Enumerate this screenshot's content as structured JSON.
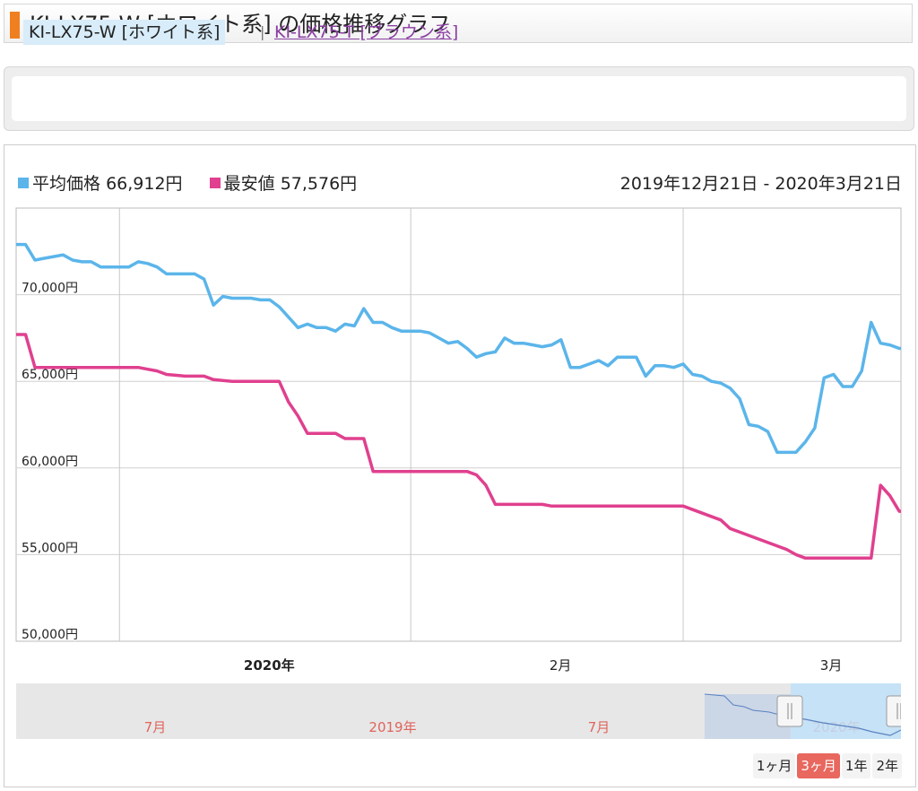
{
  "page": {
    "title": "KI-LX75-W [ホワイト系] の価格推移グラフ"
  },
  "variants": {
    "current": "KI-LX75-W [ホワイト系]",
    "separator": "|",
    "other": "KI-LX75-T [ブラウン系]"
  },
  "legend": {
    "avg_label": "平均価格",
    "avg_value": "66,912円",
    "min_label": "最安値",
    "min_value": "57,576円",
    "date_range": "2019年12月21日 - 2020年3月21日"
  },
  "range_buttons": [
    {
      "label": "1ヶ月",
      "active": false
    },
    {
      "label": "3ヶ月",
      "active": true
    },
    {
      "label": "1年",
      "active": false
    },
    {
      "label": "2年",
      "active": false
    }
  ],
  "navigator": {
    "labels": [
      "7月",
      "2019年",
      "7月",
      "2020年"
    ]
  },
  "chart_data": {
    "type": "line",
    "title": "",
    "x_range": [
      "2019-12-21",
      "2020-03-21"
    ],
    "ylim": [
      50000,
      75000
    ],
    "y_ticks": [
      50000,
      55000,
      60000,
      65000,
      70000
    ],
    "y_tick_labels": [
      "50,000円",
      "55,000円",
      "60,000円",
      "65,000円",
      "70,000円"
    ],
    "x_ticks": [
      {
        "date": "2020-01-01",
        "label": "2020年",
        "bold": true
      },
      {
        "date": "2020-02-01",
        "label": "2月",
        "bold": false
      },
      {
        "date": "2020-03-01",
        "label": "3月",
        "bold": false
      }
    ],
    "grid": true,
    "legend_position": "top-left",
    "series": [
      {
        "name": "平均価格",
        "color": "#5bb5ea",
        "points": [
          [
            "2019-12-21",
            72900
          ],
          [
            "2019-12-22",
            72900
          ],
          [
            "2019-12-23",
            72000
          ],
          [
            "2019-12-24",
            72100
          ],
          [
            "2019-12-25",
            72200
          ],
          [
            "2019-12-26",
            72300
          ],
          [
            "2019-12-27",
            72000
          ],
          [
            "2019-12-28",
            71900
          ],
          [
            "2019-12-29",
            71900
          ],
          [
            "2019-12-30",
            71600
          ],
          [
            "2019-12-31",
            71600
          ],
          [
            "2020-01-01",
            71600
          ],
          [
            "2020-01-02",
            71600
          ],
          [
            "2020-01-03",
            71900
          ],
          [
            "2020-01-04",
            71800
          ],
          [
            "2020-01-05",
            71600
          ],
          [
            "2020-01-06",
            71200
          ],
          [
            "2020-01-07",
            71200
          ],
          [
            "2020-01-08",
            71200
          ],
          [
            "2020-01-09",
            71200
          ],
          [
            "2020-01-10",
            70900
          ],
          [
            "2020-01-11",
            69400
          ],
          [
            "2020-01-12",
            69900
          ],
          [
            "2020-01-13",
            69800
          ],
          [
            "2020-01-14",
            69800
          ],
          [
            "2020-01-15",
            69800
          ],
          [
            "2020-01-16",
            69700
          ],
          [
            "2020-01-17",
            69700
          ],
          [
            "2020-01-18",
            69300
          ],
          [
            "2020-01-19",
            68700
          ],
          [
            "2020-01-20",
            68100
          ],
          [
            "2020-01-21",
            68300
          ],
          [
            "2020-01-22",
            68100
          ],
          [
            "2020-01-23",
            68100
          ],
          [
            "2020-01-24",
            67900
          ],
          [
            "2020-01-25",
            68300
          ],
          [
            "2020-01-26",
            68200
          ],
          [
            "2020-01-27",
            69200
          ],
          [
            "2020-01-28",
            68400
          ],
          [
            "2020-01-29",
            68400
          ],
          [
            "2020-01-30",
            68100
          ],
          [
            "2020-01-31",
            67900
          ],
          [
            "2020-02-01",
            67900
          ],
          [
            "2020-02-02",
            67900
          ],
          [
            "2020-02-03",
            67800
          ],
          [
            "2020-02-04",
            67500
          ],
          [
            "2020-02-05",
            67200
          ],
          [
            "2020-02-06",
            67300
          ],
          [
            "2020-02-07",
            66900
          ],
          [
            "2020-02-08",
            66400
          ],
          [
            "2020-02-09",
            66600
          ],
          [
            "2020-02-10",
            66700
          ],
          [
            "2020-02-11",
            67500
          ],
          [
            "2020-02-12",
            67200
          ],
          [
            "2020-02-13",
            67200
          ],
          [
            "2020-02-14",
            67100
          ],
          [
            "2020-02-15",
            67000
          ],
          [
            "2020-02-16",
            67100
          ],
          [
            "2020-02-17",
            67400
          ],
          [
            "2020-02-18",
            65800
          ],
          [
            "2020-02-19",
            65800
          ],
          [
            "2020-02-20",
            66000
          ],
          [
            "2020-02-21",
            66200
          ],
          [
            "2020-02-22",
            65900
          ],
          [
            "2020-02-23",
            66400
          ],
          [
            "2020-02-24",
            66400
          ],
          [
            "2020-02-25",
            66400
          ],
          [
            "2020-02-26",
            65300
          ],
          [
            "2020-02-27",
            65900
          ],
          [
            "2020-02-28",
            65900
          ],
          [
            "2020-02-29",
            65800
          ],
          [
            "2020-03-01",
            66000
          ],
          [
            "2020-03-02",
            65400
          ],
          [
            "2020-03-03",
            65300
          ],
          [
            "2020-03-04",
            65000
          ],
          [
            "2020-03-05",
            64900
          ],
          [
            "2020-03-06",
            64600
          ],
          [
            "2020-03-07",
            64000
          ],
          [
            "2020-03-08",
            62500
          ],
          [
            "2020-03-09",
            62400
          ],
          [
            "2020-03-10",
            62100
          ],
          [
            "2020-03-11",
            60900
          ],
          [
            "2020-03-12",
            60900
          ],
          [
            "2020-03-13",
            60900
          ],
          [
            "2020-03-14",
            61500
          ],
          [
            "2020-03-15",
            62300
          ],
          [
            "2020-03-16",
            65200
          ],
          [
            "2020-03-17",
            65400
          ],
          [
            "2020-03-18",
            64700
          ],
          [
            "2020-03-19",
            64700
          ],
          [
            "2020-03-20",
            65600
          ],
          [
            "2020-03-21",
            68400
          ],
          [
            "2020-03-22",
            67200
          ],
          [
            "2020-03-23",
            67100
          ],
          [
            "2020-03-24",
            66900
          ],
          [
            "2020-03-25",
            66900
          ]
        ]
      },
      {
        "name": "最安値",
        "color": "#e0408f",
        "points": [
          [
            "2019-12-21",
            67700
          ],
          [
            "2019-12-22",
            67700
          ],
          [
            "2019-12-23",
            65800
          ],
          [
            "2019-12-31",
            65800
          ],
          [
            "2020-01-03",
            65800
          ],
          [
            "2020-01-04",
            65700
          ],
          [
            "2020-01-05",
            65600
          ],
          [
            "2020-01-06",
            65400
          ],
          [
            "2020-01-08",
            65300
          ],
          [
            "2020-01-10",
            65300
          ],
          [
            "2020-01-11",
            65100
          ],
          [
            "2020-01-13",
            65000
          ],
          [
            "2020-01-18",
            65000
          ],
          [
            "2020-01-19",
            63800
          ],
          [
            "2020-01-20",
            63000
          ],
          [
            "2020-01-21",
            62000
          ],
          [
            "2020-01-24",
            62000
          ],
          [
            "2020-01-25",
            61700
          ],
          [
            "2020-01-27",
            61700
          ],
          [
            "2020-01-28",
            59800
          ],
          [
            "2020-02-07",
            59800
          ],
          [
            "2020-02-08",
            59600
          ],
          [
            "2020-02-09",
            59000
          ],
          [
            "2020-02-10",
            57900
          ],
          [
            "2020-02-13",
            57900
          ],
          [
            "2020-02-15",
            57900
          ],
          [
            "2020-02-16",
            57800
          ],
          [
            "2020-03-01",
            57800
          ],
          [
            "2020-03-02",
            57600
          ],
          [
            "2020-03-05",
            57000
          ],
          [
            "2020-03-06",
            56500
          ],
          [
            "2020-03-12",
            55300
          ],
          [
            "2020-03-13",
            55000
          ],
          [
            "2020-03-14",
            54800
          ],
          [
            "2020-03-21",
            54800
          ],
          [
            "2020-03-22",
            59000
          ],
          [
            "2020-03-23",
            58400
          ],
          [
            "2020-03-24",
            57500
          ],
          [
            "2020-03-25",
            57500
          ]
        ]
      }
    ]
  }
}
